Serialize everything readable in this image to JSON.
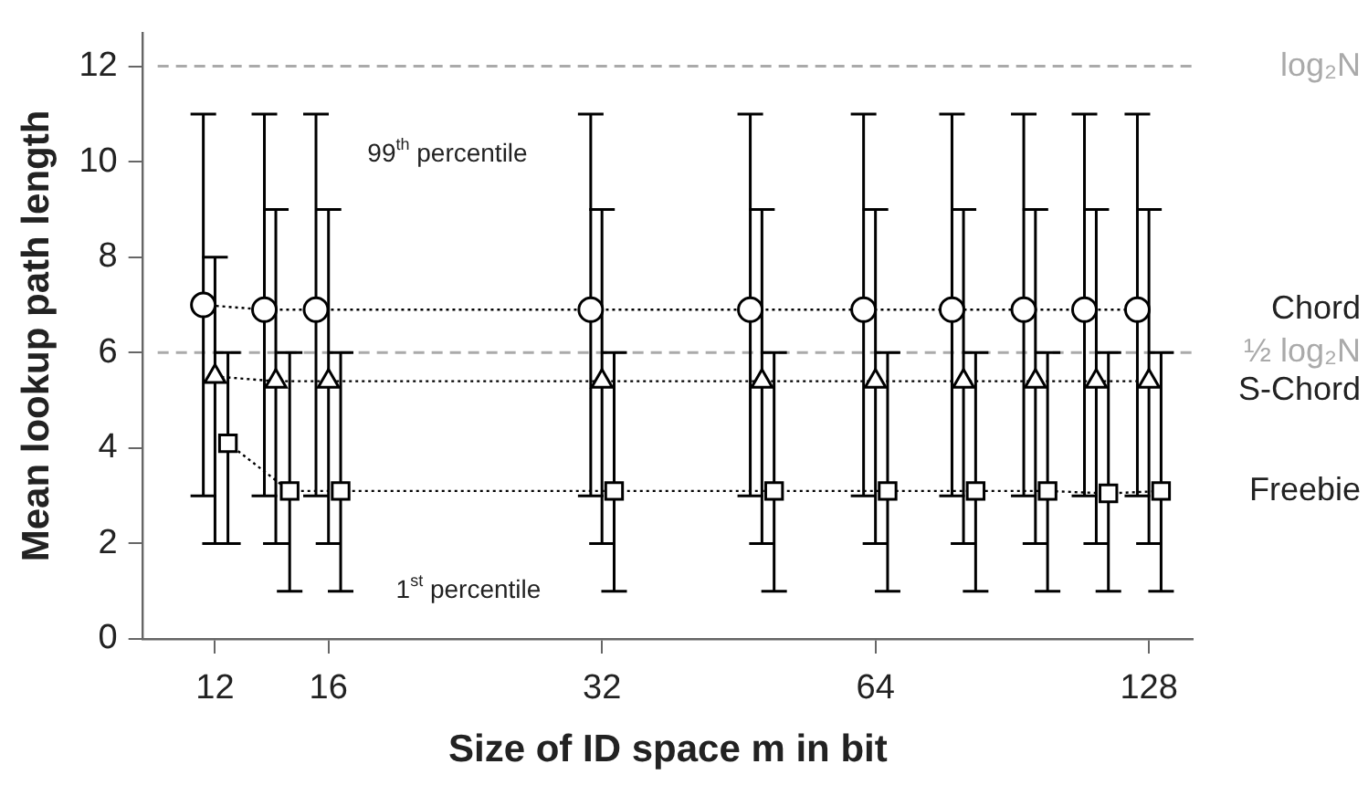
{
  "chart_data": {
    "type": "line",
    "xlabel": "Size of ID space m in bit",
    "ylabel": "Mean lookup path length",
    "log": "x",
    "xlim": [
      10,
      143
    ],
    "xticks": [
      12,
      16,
      32,
      64,
      128
    ],
    "ylim": [
      0,
      12.7
    ],
    "yticks": [
      0,
      2,
      4,
      6,
      8,
      10,
      12
    ],
    "grid": false,
    "legend": false,
    "line_style": "dotted",
    "series": [
      {
        "name": "Chord",
        "color": "#000000",
        "marker": "circle",
        "x": [
          11.65,
          13.6,
          15.5,
          31.1,
          46.6,
          62.1,
          77.7,
          93.2,
          108.7,
          124.3
        ],
        "values": [
          7.0,
          6.9,
          6.9,
          6.9,
          6.9,
          6.9,
          6.9,
          6.9,
          6.9,
          6.9
        ],
        "errors": [
          [
            3,
            11
          ],
          [
            3,
            11
          ],
          [
            3,
            11
          ],
          [
            3,
            11
          ],
          [
            3,
            11
          ],
          [
            3,
            11
          ],
          [
            3,
            11
          ],
          [
            3,
            11
          ],
          [
            3,
            11
          ],
          [
            3,
            11
          ]
        ]
      },
      {
        "name": "S-Chord",
        "color": "#000000",
        "marker": "triangle",
        "x": [
          12,
          14,
          16,
          32,
          48,
          64,
          80,
          96,
          112,
          128
        ],
        "values": [
          5.5,
          5.4,
          5.4,
          5.4,
          5.4,
          5.4,
          5.4,
          5.4,
          5.4,
          5.4
        ],
        "errors": [
          [
            2,
            8
          ],
          [
            2,
            9
          ],
          [
            2,
            9
          ],
          [
            2,
            9
          ],
          [
            2,
            9
          ],
          [
            2,
            9
          ],
          [
            2,
            9
          ],
          [
            2,
            9
          ],
          [
            2,
            9
          ],
          [
            2,
            9
          ]
        ]
      },
      {
        "name": "Freebie",
        "color": "#000000",
        "marker": "square",
        "x": [
          12.4,
          14.5,
          16.5,
          33,
          49.5,
          66,
          82.5,
          99,
          115.5,
          132
        ],
        "values": [
          4.1,
          3.1,
          3.1,
          3.1,
          3.1,
          3.1,
          3.1,
          3.1,
          3.05,
          3.1
        ],
        "errors": [
          [
            2,
            6
          ],
          [
            1,
            6
          ],
          [
            1,
            6
          ],
          [
            1,
            6
          ],
          [
            1,
            6
          ],
          [
            1,
            6
          ],
          [
            1,
            6
          ],
          [
            1,
            6
          ],
          [
            1,
            6
          ],
          [
            1,
            6
          ]
        ]
      }
    ],
    "ref_lines": [
      {
        "axis": "y",
        "value": 12,
        "label": "log₂N",
        "color": "#aaaaaa",
        "line_style": "dashed"
      },
      {
        "axis": "y",
        "value": 6,
        "label": "½ log₂N",
        "color": "#aaaaaa",
        "line_style": "dashed"
      }
    ],
    "annotations": [
      "99$^{th}$ percentile",
      "1$^{st}$ percentile"
    ]
  }
}
